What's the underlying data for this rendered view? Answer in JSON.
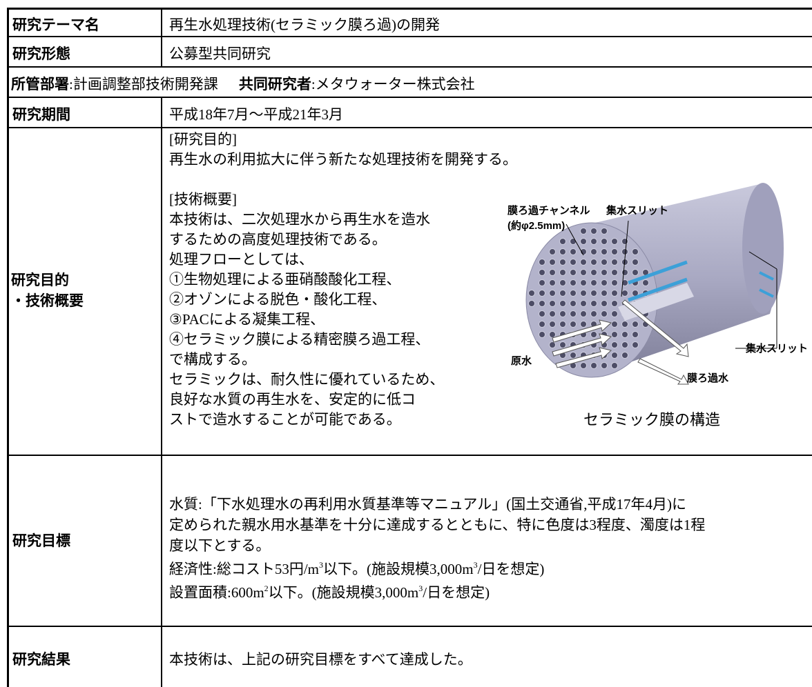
{
  "theme": {
    "label": "研究テーマ名",
    "value": "再生水処理技術(セラミック膜ろ過)の開発"
  },
  "form": {
    "label": "研究形態",
    "value": "公募型共同研究"
  },
  "department": {
    "label": "所管部署",
    "value": ":計画調整部技術開発課"
  },
  "partner": {
    "label": "共同研究者",
    "value": ":メタウォーター株式会社"
  },
  "period": {
    "label": "研究期間",
    "value": "平成18年7月～平成21年3月"
  },
  "purpose": {
    "label_lines": [
      "研究目的",
      "・技術概要"
    ],
    "aim": {
      "heading": "[研究目的]",
      "lines": [
        "再生水の利用拡大に伴う新たな処理技術を開発する。"
      ]
    },
    "overview": {
      "heading": "[技術概要]",
      "lines": [
        "本技術は、二次処理水から再生水を造水",
        "するための高度処理技術である。",
        "処理フローとしては、",
        "①生物処理による亜硝酸酸化工程、",
        "②オゾンによる脱色・酸化工程、",
        "③PACによる凝集工程、",
        "④セラミック膜による精密膜ろ過工程、",
        "で構成する。",
        "セラミックは、耐久性に優れているため、",
        "良好な水質の再生水を、安定的に低コ",
        "ストで造水することが可能である。"
      ]
    },
    "figure": {
      "channel_label": "膜ろ過チャンネル",
      "channel_size": "(約φ2.5mm)",
      "slit_label_top": "集水スリット",
      "slit_label_right": "集水スリット",
      "raw_water": "原水",
      "filtered_water": "膜ろ過水",
      "caption": "セラミック膜の構造"
    }
  },
  "goal": {
    "label": "研究目標",
    "lines": [
      [
        "水質:「下水処理水の再利用水質基準等マニュアル」(国土交通省,平成17年4月)に"
      ],
      [
        "定められた親水用水基準を十分に達成するとともに、特に色度は3程度、濁度は1程"
      ],
      [
        "度以下とする。"
      ],
      [
        "経済性:総コスト53円/m",
        "3",
        "以下。(施設規模3,000m",
        "3",
        "/日を想定)"
      ],
      [
        "設置面積:600m",
        "2",
        "以下。(施設規模3,000m",
        "3",
        "/日を想定)"
      ]
    ]
  },
  "result": {
    "label": "研究結果",
    "value": "本技術は、上記の研究目標をすべて達成した。"
  }
}
